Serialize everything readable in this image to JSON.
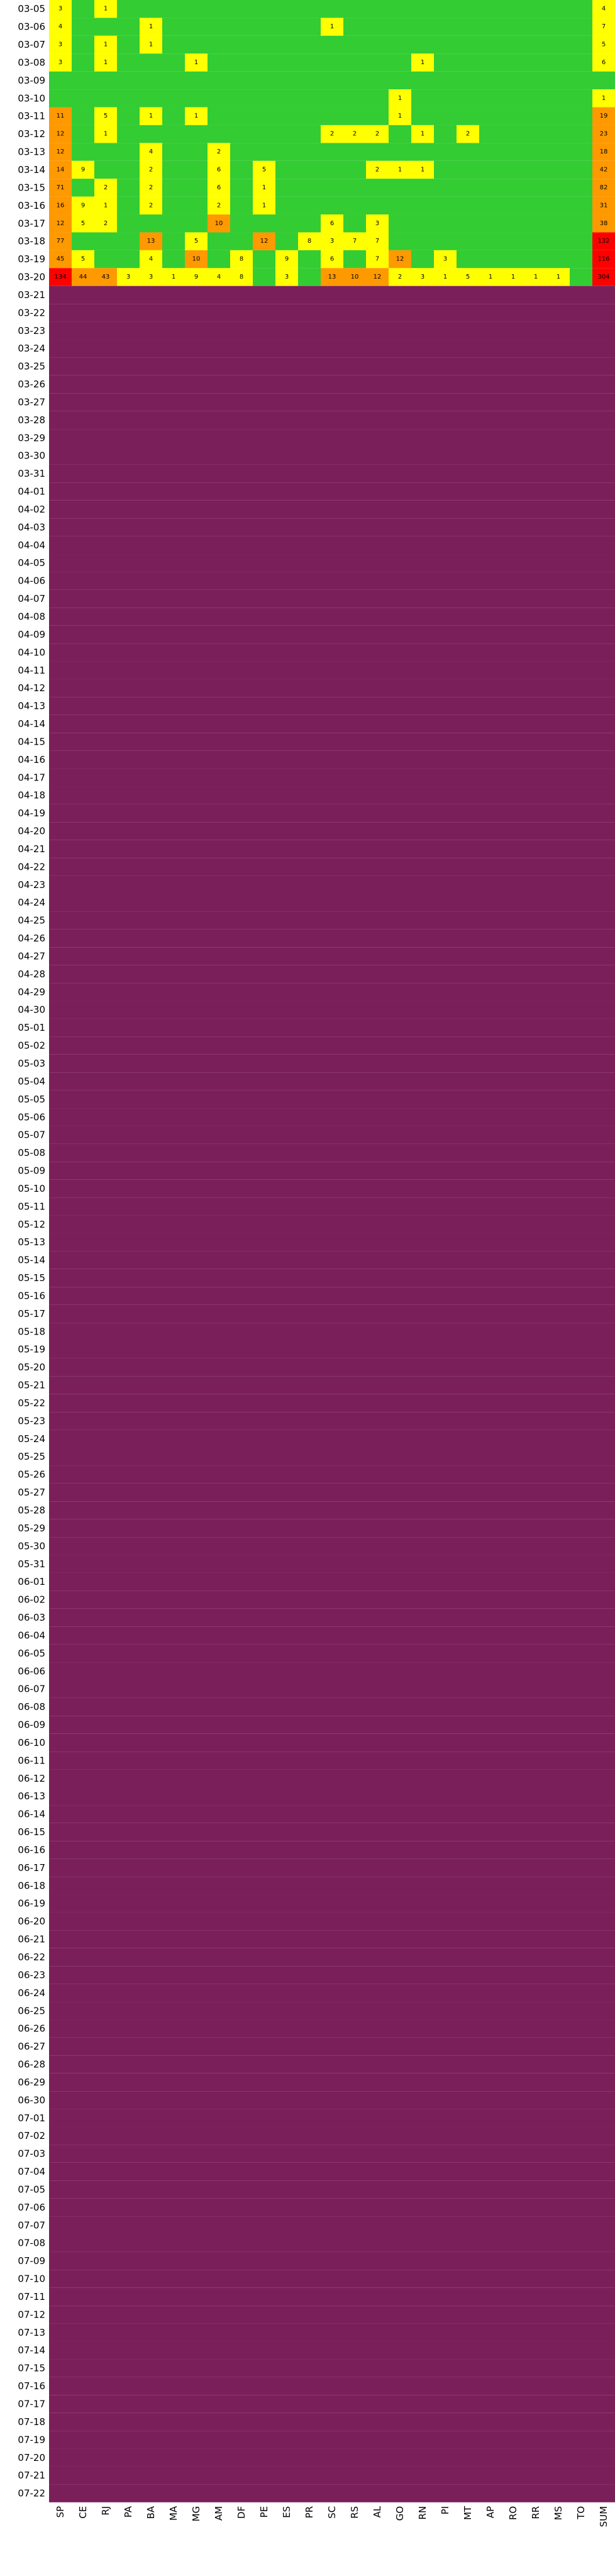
{
  "chart_data": {
    "type": "heatmap",
    "title": "",
    "xlabel": "",
    "ylabel": "",
    "columns": [
      "SP",
      "CE",
      "RJ",
      "PA",
      "BA",
      "MA",
      "MG",
      "AM",
      "DF",
      "PE",
      "ES",
      "PR",
      "SC",
      "RS",
      "AL",
      "GO",
      "RN",
      "PI",
      "MT",
      "AP",
      "RO",
      "RR",
      "MS",
      "TO",
      "SUM"
    ],
    "dates": [
      "03-05",
      "03-06",
      "03-07",
      "03-08",
      "03-09",
      "03-10",
      "03-11",
      "03-12",
      "03-13",
      "03-14",
      "03-15",
      "03-16",
      "03-17",
      "03-18",
      "03-19",
      "03-20",
      "03-21",
      "03-22",
      "03-23",
      "03-24",
      "03-25",
      "03-26",
      "03-27",
      "03-28",
      "03-29",
      "03-30",
      "03-31",
      "04-01",
      "04-02",
      "04-03",
      "04-04",
      "04-05",
      "04-06",
      "04-07",
      "04-08",
      "04-09",
      "04-10",
      "04-11",
      "04-12",
      "04-13",
      "04-14",
      "04-15",
      "04-16",
      "04-17",
      "04-18",
      "04-19",
      "04-20",
      "04-21",
      "04-22",
      "04-23",
      "04-24",
      "04-25",
      "04-26",
      "04-27",
      "04-28",
      "04-29",
      "04-30",
      "05-01",
      "05-02",
      "05-03",
      "05-04",
      "05-05",
      "05-06",
      "05-07",
      "05-08",
      "05-09",
      "05-10",
      "05-11",
      "05-12",
      "05-13",
      "05-14",
      "05-15",
      "05-16",
      "05-17",
      "05-18",
      "05-19",
      "05-20",
      "05-21",
      "05-22",
      "05-23",
      "05-24",
      "05-25",
      "05-26",
      "05-27",
      "05-28",
      "05-29",
      "05-30",
      "05-31",
      "06-01",
      "06-02",
      "06-03",
      "06-04",
      "06-05",
      "06-06",
      "06-07",
      "06-08",
      "06-09",
      "06-10",
      "06-11",
      "06-12",
      "06-13",
      "06-14",
      "06-15",
      "06-16",
      "06-17",
      "06-18",
      "06-19",
      "06-20",
      "06-21",
      "06-22",
      "06-23",
      "06-24",
      "06-25",
      "06-26",
      "06-27",
      "06-28",
      "06-29",
      "06-30",
      "07-01",
      "07-02",
      "07-03",
      "07-04",
      "07-05",
      "07-06",
      "07-07",
      "07-08",
      "07-09",
      "07-10",
      "07-11",
      "07-12",
      "07-13",
      "07-14",
      "07-15",
      "07-16",
      "07-17",
      "07-18",
      "07-19",
      "07-20",
      "07-21",
      "07-22"
    ],
    "early_rows": [
      [
        3,
        0,
        1,
        0,
        0,
        0,
        0,
        0,
        0,
        0,
        0,
        0,
        0,
        0,
        0,
        0,
        0,
        0,
        0,
        0,
        0,
        0,
        0,
        0,
        4
      ],
      [
        4,
        0,
        0,
        0,
        1,
        0,
        0,
        0,
        0,
        0,
        0,
        0,
        1,
        0,
        0,
        0,
        0,
        0,
        0,
        0,
        0,
        0,
        0,
        0,
        7
      ],
      [
        3,
        0,
        1,
        0,
        1,
        0,
        0,
        0,
        0,
        0,
        0,
        0,
        0,
        0,
        0,
        0,
        0,
        0,
        0,
        0,
        0,
        0,
        0,
        0,
        5
      ],
      [
        3,
        0,
        1,
        0,
        0,
        0,
        1,
        0,
        0,
        0,
        0,
        0,
        0,
        0,
        0,
        0,
        1,
        0,
        0,
        0,
        0,
        0,
        0,
        0,
        6
      ],
      [
        0,
        0,
        0,
        0,
        0,
        0,
        0,
        0,
        0,
        0,
        0,
        0,
        0,
        0,
        0,
        0,
        0,
        0,
        0,
        0,
        0,
        0,
        0,
        0,
        0
      ],
      [
        0,
        0,
        0,
        0,
        0,
        0,
        0,
        0,
        0,
        0,
        0,
        0,
        0,
        0,
        0,
        1,
        0,
        0,
        0,
        0,
        0,
        0,
        0,
        0,
        1
      ],
      [
        11,
        0,
        5,
        0,
        1,
        0,
        1,
        0,
        0,
        0,
        0,
        0,
        0,
        0,
        0,
        1,
        0,
        0,
        0,
        0,
        0,
        0,
        0,
        0,
        19
      ],
      [
        12,
        0,
        1,
        0,
        0,
        0,
        0,
        0,
        0,
        0,
        0,
        0,
        2,
        2,
        2,
        0,
        1,
        0,
        2,
        0,
        0,
        0,
        0,
        0,
        23
      ],
      [
        12,
        0,
        0,
        0,
        4,
        0,
        0,
        2,
        0,
        0,
        0,
        0,
        0,
        0,
        0,
        0,
        0,
        0,
        0,
        0,
        0,
        0,
        0,
        0,
        18
      ],
      [
        14,
        9,
        0,
        0,
        2,
        0,
        0,
        6,
        0,
        5,
        0,
        0,
        0,
        0,
        2,
        1,
        1,
        0,
        0,
        0,
        0,
        0,
        0,
        0,
        42
      ],
      [
        71,
        0,
        2,
        0,
        2,
        0,
        0,
        6,
        0,
        1,
        0,
        0,
        0,
        0,
        0,
        0,
        0,
        0,
        0,
        0,
        0,
        0,
        0,
        0,
        82
      ],
      [
        16,
        9,
        1,
        0,
        2,
        0,
        0,
        2,
        0,
        1,
        0,
        0,
        0,
        0,
        0,
        0,
        0,
        0,
        0,
        0,
        0,
        0,
        0,
        0,
        31
      ],
      [
        12,
        5,
        2,
        0,
        0,
        0,
        0,
        10,
        0,
        0,
        0,
        0,
        6,
        0,
        3,
        0,
        0,
        0,
        0,
        0,
        0,
        0,
        0,
        0,
        38
      ],
      [
        77,
        0,
        0,
        0,
        13,
        0,
        5,
        0,
        0,
        12,
        0,
        8,
        3,
        7,
        7,
        0,
        0,
        0,
        0,
        0,
        0,
        0,
        0,
        0,
        132
      ],
      [
        45,
        5,
        0,
        0,
        4,
        0,
        10,
        0,
        8,
        0,
        9,
        0,
        6,
        0,
        7,
        12,
        0,
        3,
        0,
        0,
        0,
        0,
        0,
        0,
        116
      ],
      [
        134,
        44,
        43,
        3,
        3,
        1,
        9,
        4,
        8,
        0,
        3,
        0,
        13,
        10,
        12,
        2,
        3,
        1,
        5,
        1,
        1,
        1,
        1,
        0,
        304
      ]
    ],
    "legend": [],
    "colors": {
      "zero": "#33cc33",
      "low": "#ffff00",
      "mid": "#ff9900",
      "high": "#ff0000",
      "top": "#7b1f5a"
    }
  }
}
